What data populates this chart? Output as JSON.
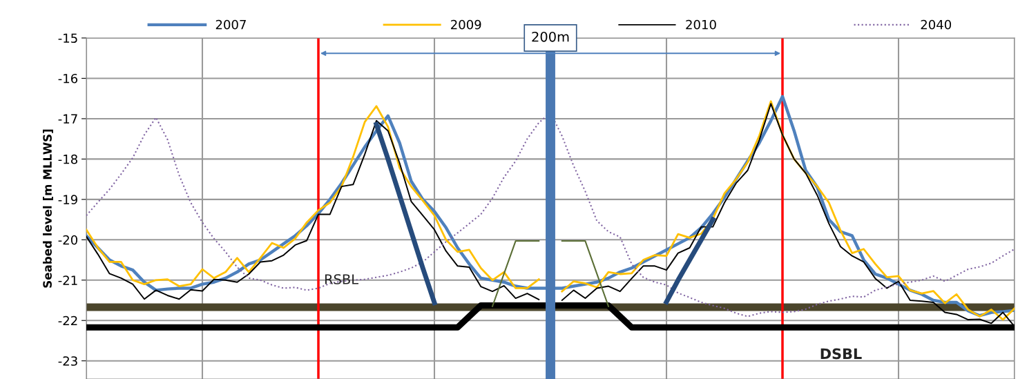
{
  "chart_data": {
    "type": "line",
    "ylabel": "Seabed level [m MLLWS]",
    "categories": [
      null,
      null,
      null,
      null,
      null,
      null,
      null,
      null,
      null,
      null,
      null,
      null,
      null,
      null,
      null,
      null,
      null,
      null,
      null,
      null,
      null,
      null,
      null,
      null,
      null,
      null,
      null,
      null,
      null,
      null,
      null,
      null,
      null,
      null,
      null,
      null,
      null,
      null,
      null,
      null,
      null,
      null,
      null,
      null,
      null,
      null,
      null,
      null,
      null,
      null,
      null,
      null,
      null,
      null,
      null,
      null,
      null,
      null,
      null,
      null,
      null,
      null,
      null,
      null,
      null,
      null,
      null,
      null,
      null,
      null,
      null,
      null,
      null,
      null,
      null,
      null,
      null,
      null,
      null,
      null,
      null
    ],
    "ylim": [
      -23.45,
      -15
    ],
    "yticks": [
      -15,
      -16,
      -17,
      -18,
      -19,
      -20,
      -21,
      -22,
      -23
    ],
    "tick_labels": "y",
    "grid": true,
    "legend": "top",
    "marker": "none",
    "series": [
      {
        "name": "2007",
        "color": "#4f81bd",
        "line_style": "solid",
        "values": [
          -19.9,
          -20.2,
          -20.5,
          -20.65,
          -20.75,
          -21.05,
          -21.25,
          -21.22,
          -21.2,
          -21.2,
          -21.1,
          -21.05,
          -20.95,
          -20.8,
          -20.6,
          -20.5,
          -20.3,
          -20.1,
          -19.9,
          -19.65,
          -19.35,
          -19.0,
          -18.6,
          -18.15,
          -17.7,
          -17.3,
          -16.93,
          -17.6,
          -18.55,
          -19.0,
          -19.3,
          -19.7,
          -20.2,
          -20.6,
          -20.95,
          -21.0,
          -21.05,
          -21.15,
          -21.2,
          -21.2,
          -21.2,
          -21.2,
          -21.15,
          -21.1,
          -21.05,
          -20.95,
          -20.8,
          -20.7,
          -20.55,
          -20.4,
          -20.25,
          -20.1,
          -19.95,
          -19.7,
          -19.35,
          -18.95,
          -18.5,
          -18.05,
          -17.6,
          -17.05,
          -16.45,
          -17.3,
          -18.28,
          -18.7,
          -19.5,
          -19.8,
          -19.9,
          -20.5,
          -20.85,
          -20.95,
          -21.1,
          -21.25,
          -21.35,
          -21.5,
          -21.55,
          -21.55,
          -21.76,
          -21.88,
          -21.8,
          -21.78,
          -21.75
        ]
      },
      {
        "name": "2009",
        "color": "#ffc000",
        "line_style": "solid",
        "values": [
          -19.75,
          -20.2,
          -20.55,
          -20.55,
          -21.0,
          -21.1,
          -21.0,
          -20.98,
          -21.15,
          -21.1,
          -20.73,
          -20.95,
          -20.8,
          -20.45,
          -20.8,
          -20.45,
          -20.08,
          -20.2,
          -19.97,
          -19.57,
          -19.27,
          -19.08,
          -18.68,
          -17.94,
          -17.08,
          -16.69,
          -17.2,
          -18.22,
          -18.68,
          -19.03,
          -19.4,
          -20.0,
          -20.3,
          -20.25,
          -20.7,
          -21.0,
          -20.8,
          -21.2,
          -21.2,
          -20.98,
          null,
          -21.28,
          -21.03,
          -21.08,
          -21.18,
          -20.8,
          -20.85,
          -20.83,
          -20.5,
          -20.38,
          -20.4,
          -19.86,
          -19.95,
          -19.85,
          -19.48,
          -18.85,
          -18.5,
          -18.08,
          -17.42,
          -16.57,
          -17.4,
          -18.0,
          -18.35,
          -18.68,
          -19.08,
          -19.77,
          -20.33,
          -20.23,
          -20.6,
          -20.93,
          -20.9,
          -21.25,
          -21.33,
          -21.27,
          -21.57,
          -21.35,
          -21.73,
          -21.9,
          -21.73,
          -21.98,
          -21.7
        ]
      },
      {
        "name": "2010",
        "color": "#000000",
        "line_style": "solid",
        "values": [
          -19.92,
          -20.36,
          -20.84,
          -20.95,
          -21.1,
          -21.47,
          -21.25,
          -21.38,
          -21.47,
          -21.24,
          -21.27,
          -20.98,
          -21.0,
          -21.05,
          -20.85,
          -20.55,
          -20.52,
          -20.38,
          -20.13,
          -20.02,
          -19.37,
          -19.37,
          -18.68,
          -18.63,
          -17.88,
          -17.05,
          -17.3,
          -18.1,
          -19.05,
          -19.4,
          -19.75,
          -20.28,
          -20.65,
          -20.68,
          -21.16,
          -21.28,
          -21.14,
          -21.45,
          -21.33,
          -21.48,
          null,
          -21.5,
          -21.25,
          -21.45,
          -21.2,
          -21.15,
          -21.28,
          -20.96,
          -20.65,
          -20.65,
          -20.75,
          -20.33,
          -20.2,
          -19.68,
          -19.68,
          -19.08,
          -18.6,
          -18.28,
          -17.53,
          -16.63,
          -17.4,
          -18.0,
          -18.35,
          -18.9,
          -19.6,
          -20.17,
          -20.4,
          -20.55,
          -20.96,
          -21.2,
          -21.03,
          -21.5,
          -21.52,
          -21.55,
          -21.8,
          -21.85,
          -21.98,
          -21.97,
          -22.07,
          -21.8,
          -22.15
        ]
      },
      {
        "name": "2040",
        "color": "#8064a2",
        "line_style": "dotted",
        "values": [
          -19.4,
          -19.07,
          -18.75,
          -18.37,
          -17.97,
          -17.4,
          -16.97,
          -17.52,
          -18.4,
          -19.08,
          -19.57,
          -19.97,
          -20.3,
          -20.68,
          -20.95,
          -21.0,
          -21.12,
          -21.2,
          -21.18,
          -21.25,
          -21.2,
          -21.08,
          -21.03,
          -21.0,
          -20.98,
          -20.93,
          -20.88,
          -20.8,
          -20.7,
          -20.55,
          -20.3,
          -20.05,
          -19.83,
          -19.6,
          -19.37,
          -18.97,
          -18.45,
          -18.05,
          -17.5,
          -17.1,
          -16.85,
          -17.43,
          -18.17,
          -18.8,
          -19.53,
          -19.8,
          -19.93,
          -20.6,
          -20.93,
          -21.05,
          -21.12,
          -21.32,
          -21.43,
          -21.55,
          -21.63,
          -21.7,
          -21.82,
          -21.9,
          -21.82,
          -21.78,
          -21.8,
          -21.78,
          -21.72,
          -21.6,
          -21.52,
          -21.47,
          -21.4,
          -21.42,
          -21.25,
          -21.17,
          -21.1,
          -21.05,
          -21.0,
          -20.9,
          -21.03,
          -20.88,
          -20.73,
          -20.67,
          -20.58,
          -20.4,
          -20.23
        ]
      },
      {
        "color": "#000000",
        "line_style": "solid",
        "values": [
          -22.17,
          -22.17,
          -22.17,
          -22.17,
          -22.17,
          -22.17,
          -22.17,
          -22.17,
          -22.17,
          -22.17,
          -22.17,
          -22.17,
          -22.17,
          -22.17,
          -22.17,
          -22.17,
          -22.17,
          -22.17,
          -22.17,
          -22.17,
          -22.17,
          -22.17,
          -22.17,
          -22.17,
          -22.17,
          -22.17,
          -22.17,
          -22.17,
          -22.17,
          -22.17,
          -22.17,
          -22.17,
          -22.17,
          -21.9,
          -21.63,
          -21.63,
          -21.63,
          -21.63,
          -21.63,
          -21.63,
          -21.63,
          -21.63,
          -21.63,
          -21.63,
          -21.63,
          -21.63,
          -21.9,
          -22.17,
          -22.17,
          -22.17,
          -22.17,
          -22.17,
          -22.17,
          -22.17,
          -22.17,
          -22.17,
          -22.17,
          -22.17,
          -22.17,
          -22.17,
          -22.17,
          -22.17,
          -22.17,
          -22.17,
          -22.17,
          -22.17,
          -22.17,
          -22.17,
          -22.17,
          -22.17,
          -22.17,
          -22.17,
          -22.17,
          -22.17,
          -22.17,
          -22.17,
          -22.17,
          -22.17,
          -22.17,
          -22.17,
          -22.17
        ]
      },
      {
        "color": "#264b7c",
        "line_style": "solid",
        "values": [
          null,
          null,
          null,
          null,
          null,
          null,
          null,
          null,
          null,
          null,
          null,
          null,
          null,
          null,
          null,
          null,
          null,
          null,
          null,
          null,
          null,
          null,
          null,
          null,
          null,
          -17.14,
          -18.0,
          -18.9,
          -19.8,
          -20.7,
          -21.56,
          null,
          null,
          null,
          null,
          null,
          null,
          null,
          null,
          null,
          null,
          null,
          null,
          null,
          null,
          null,
          null,
          null,
          null,
          null,
          -21.54,
          -21.0,
          -20.5,
          -20.0,
          -19.5,
          null,
          null,
          null,
          null,
          null,
          null,
          null,
          null,
          null,
          null,
          null,
          null,
          null,
          null,
          null,
          null,
          null,
          null,
          null,
          null,
          null,
          null,
          null,
          null,
          null,
          null
        ]
      },
      {
        "color": "#5a6e35",
        "line_style": "solid",
        "values": [
          null,
          null,
          null,
          null,
          null,
          null,
          null,
          null,
          null,
          null,
          null,
          null,
          null,
          null,
          null,
          null,
          null,
          null,
          null,
          null,
          null,
          null,
          null,
          null,
          null,
          null,
          null,
          null,
          null,
          null,
          null,
          null,
          null,
          null,
          null,
          -21.65,
          -20.84,
          -20.03,
          -20.03,
          -20.03,
          null,
          -20.03,
          -20.03,
          -20.03,
          -20.84,
          -21.65,
          null,
          null,
          null,
          null,
          null,
          null,
          null,
          null,
          null,
          null,
          null,
          null,
          null,
          null,
          null,
          null,
          null,
          null,
          null,
          null,
          null,
          null,
          null,
          null,
          null,
          null,
          null,
          null,
          null,
          null,
          null,
          null,
          null,
          null,
          null
        ]
      }
    ],
    "ref_lines": [
      {
        "axis": "y",
        "value": -21.67,
        "color": "#4b452b"
      }
    ],
    "annotations": [
      "RSBL",
      "DSBL",
      "200m"
    ]
  }
}
